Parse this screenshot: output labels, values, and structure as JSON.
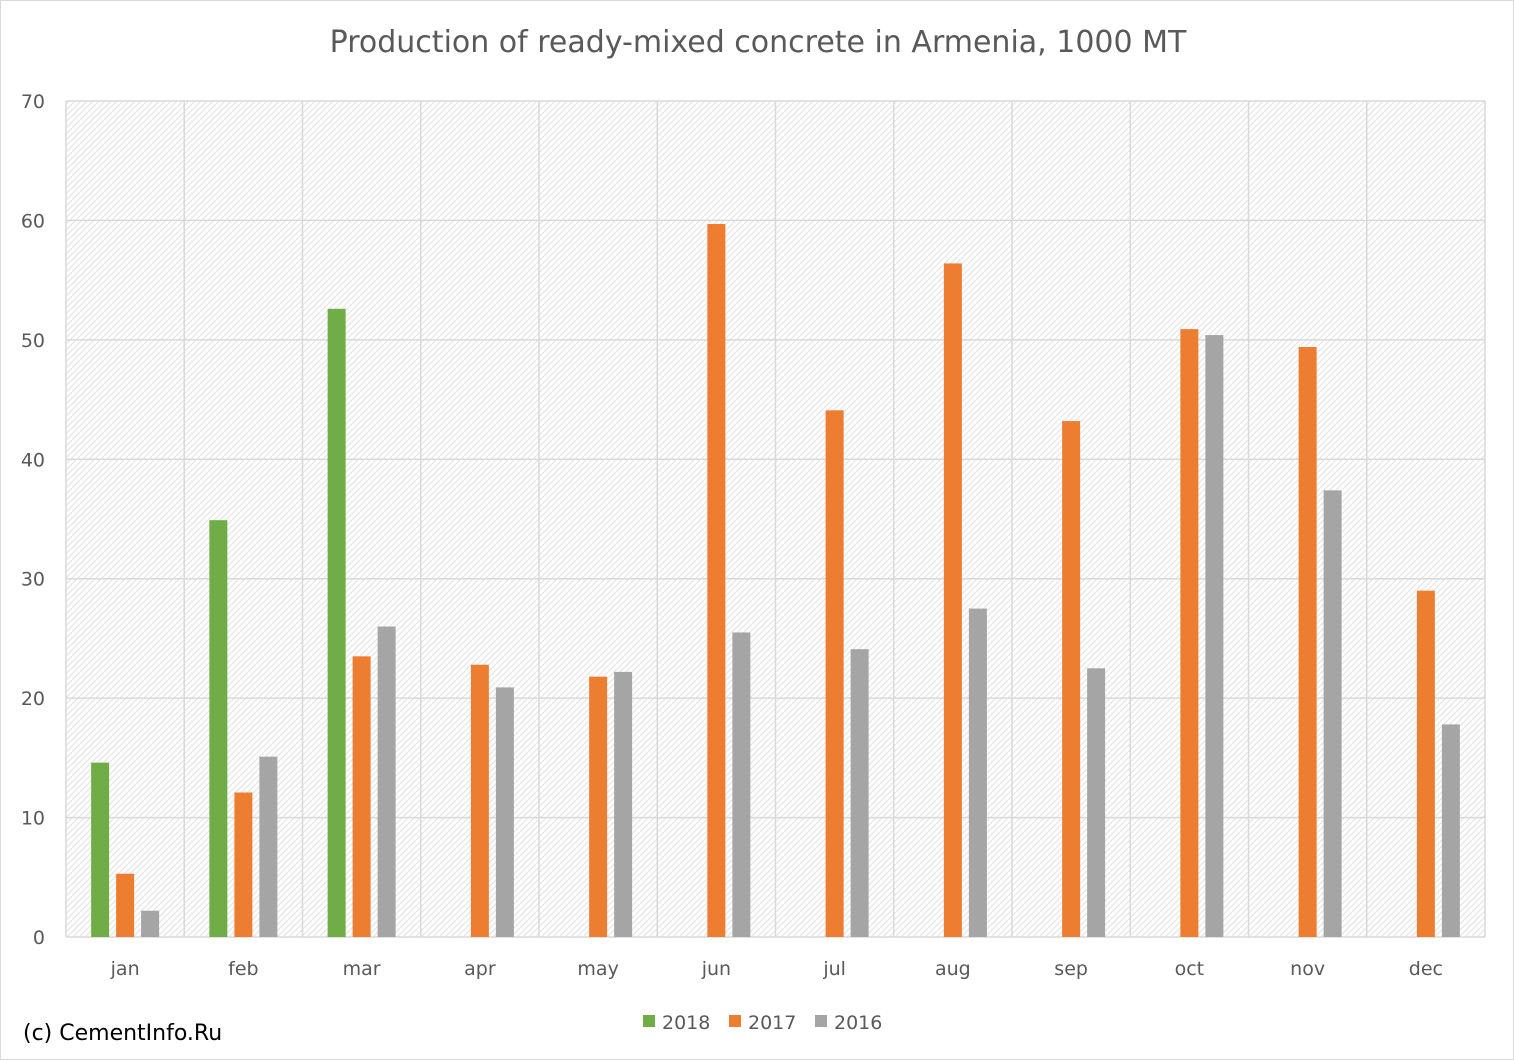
{
  "chart_data": {
    "type": "bar",
    "title": "Production of ready-mixed concrete in Armenia, 1000 MT",
    "xlabel": "",
    "ylabel": "",
    "categories": [
      "jan",
      "feb",
      "mar",
      "apr",
      "may",
      "jun",
      "jul",
      "aug",
      "sep",
      "oct",
      "nov",
      "dec"
    ],
    "series": [
      {
        "name": "2018",
        "color": "#70ad47",
        "values": [
          14.6,
          34.9,
          52.6,
          null,
          null,
          null,
          null,
          null,
          null,
          null,
          null,
          null
        ]
      },
      {
        "name": "2017",
        "color": "#ed7d31",
        "values": [
          5.3,
          12.1,
          23.5,
          22.8,
          21.8,
          59.7,
          44.1,
          56.4,
          43.2,
          50.9,
          49.4,
          29.0
        ]
      },
      {
        "name": "2016",
        "color": "#a5a5a5",
        "values": [
          2.2,
          15.1,
          26.0,
          20.9,
          22.2,
          25.5,
          24.1,
          27.5,
          22.5,
          50.4,
          37.4,
          17.8
        ]
      }
    ],
    "ylim": [
      0,
      70
    ],
    "yticks": [
      0,
      10,
      20,
      30,
      40,
      50,
      60,
      70
    ],
    "grid": true,
    "legend_position": "bottom"
  },
  "copyright": "(c) CementInfo.Ru"
}
